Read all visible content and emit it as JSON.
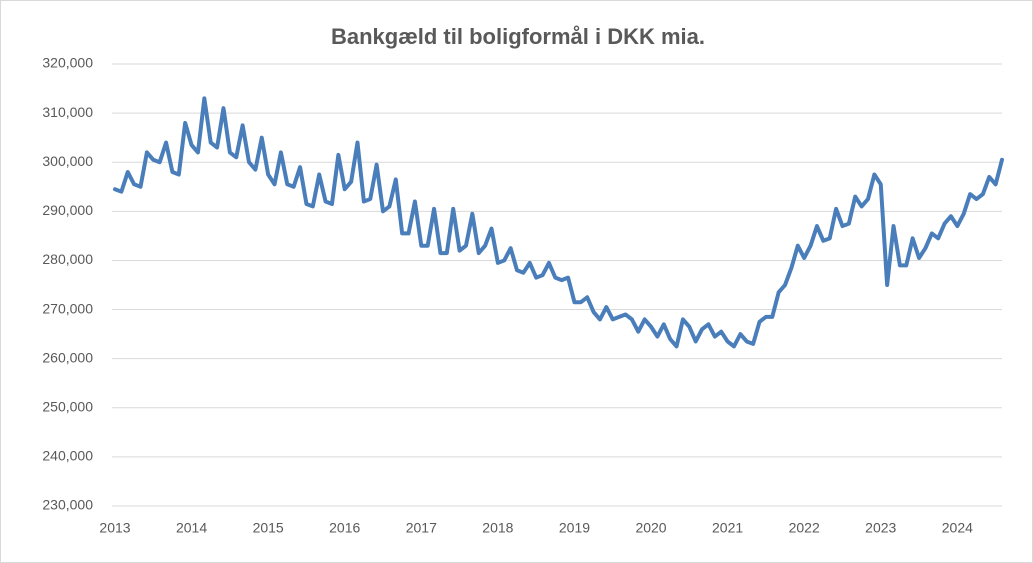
{
  "chart_data": {
    "type": "line",
    "title": "Bankgæld til boligformål i DKK mia.",
    "categories": [
      "2013",
      null,
      null,
      null,
      null,
      null,
      null,
      null,
      null,
      null,
      null,
      null,
      "2014",
      null,
      null,
      null,
      null,
      null,
      null,
      null,
      null,
      null,
      null,
      null,
      "2015",
      null,
      null,
      null,
      null,
      null,
      null,
      null,
      null,
      null,
      null,
      null,
      "2016",
      null,
      null,
      null,
      null,
      null,
      null,
      null,
      null,
      null,
      null,
      null,
      "2017",
      null,
      null,
      null,
      null,
      null,
      null,
      null,
      null,
      null,
      null,
      null,
      "2018",
      null,
      null,
      null,
      null,
      null,
      null,
      null,
      null,
      null,
      null,
      null,
      "2019",
      null,
      null,
      null,
      null,
      null,
      null,
      null,
      null,
      null,
      null,
      null,
      "2020",
      null,
      null,
      null,
      null,
      null,
      null,
      null,
      null,
      null,
      null,
      null,
      "2021",
      null,
      null,
      null,
      null,
      null,
      null,
      null,
      null,
      null,
      null,
      null,
      "2022",
      null,
      null,
      null,
      null,
      null,
      null,
      null,
      null,
      null,
      null,
      null,
      "2023",
      null,
      null,
      null,
      null,
      null,
      null,
      null,
      null,
      null,
      null,
      null,
      "2024",
      null,
      null,
      null,
      null,
      null,
      null,
      null
    ],
    "values": [
      294500,
      294000,
      298000,
      295500,
      295000,
      302000,
      300500,
      300000,
      304000,
      298000,
      297500,
      308000,
      303500,
      302000,
      313000,
      304000,
      303000,
      311000,
      302000,
      301000,
      307500,
      300000,
      298500,
      305000,
      297500,
      295500,
      302000,
      295500,
      295000,
      299000,
      291500,
      291000,
      297500,
      292000,
      291500,
      301500,
      294500,
      296000,
      304000,
      292000,
      292500,
      299500,
      290000,
      291000,
      296500,
      285500,
      285500,
      292000,
      283000,
      283000,
      290500,
      281500,
      281500,
      290500,
      282000,
      283000,
      289500,
      281500,
      283000,
      286500,
      279500,
      280000,
      282500,
      278000,
      277500,
      279500,
      276500,
      277000,
      279500,
      276500,
      276000,
      276500,
      271500,
      271500,
      272500,
      269500,
      268000,
      270500,
      268000,
      268500,
      269000,
      268000,
      265500,
      268000,
      266500,
      264500,
      267000,
      264000,
      262500,
      268000,
      266500,
      263500,
      266000,
      267000,
      264500,
      265500,
      263500,
      262500,
      265000,
      263500,
      263000,
      267500,
      268500,
      268500,
      273500,
      275000,
      278500,
      283000,
      280500,
      283000,
      287000,
      284000,
      284500,
      290500,
      287000,
      287500,
      293000,
      291000,
      292500,
      297500,
      295500,
      275000,
      287000,
      279000,
      279000,
      284500,
      280500,
      282500,
      285500,
      284500,
      287500,
      289000,
      287000,
      289500,
      293500,
      292500,
      293500,
      297000,
      295500,
      300500
    ],
    "color": "#4a7ebb",
    "ylim": [
      230000,
      320000
    ],
    "yticks": [
      {
        "value": 230000,
        "label": "230,000"
      },
      {
        "value": 240000,
        "label": "240,000"
      },
      {
        "value": 250000,
        "label": "250,000"
      },
      {
        "value": 260000,
        "label": "260,000"
      },
      {
        "value": 270000,
        "label": "270,000"
      },
      {
        "value": 280000,
        "label": "280,000"
      },
      {
        "value": 290000,
        "label": "290,000"
      },
      {
        "value": 300000,
        "label": "300,000"
      },
      {
        "value": 310000,
        "label": "310,000"
      },
      {
        "value": 320000,
        "label": "320,000"
      }
    ],
    "grid": true
  }
}
